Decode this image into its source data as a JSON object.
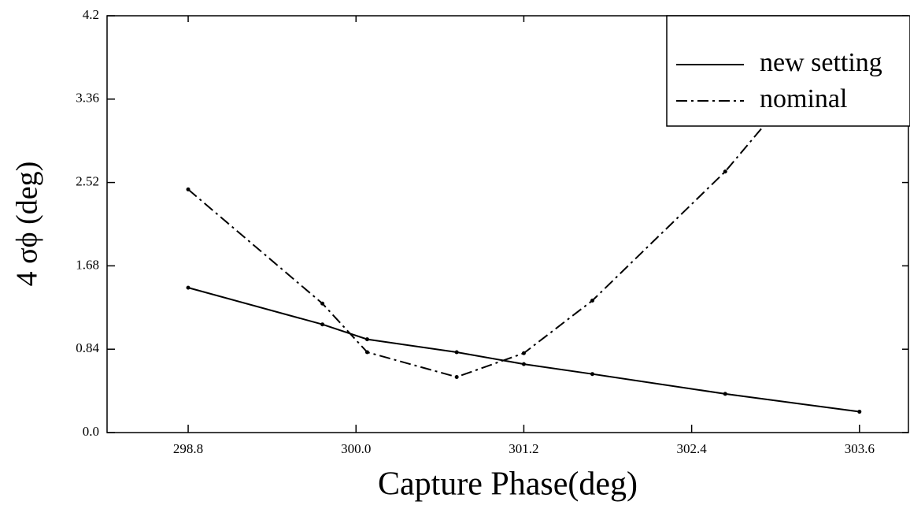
{
  "chart_data": {
    "type": "line",
    "xlabel": "Capture Phase(deg)",
    "ylabel": "4 σϕ (deg)",
    "xlim": [
      298.22,
      303.95
    ],
    "ylim": [
      0,
      4.2
    ],
    "xticks": [
      298.8,
      {
        "value": 300.0,
        "label": "300.0"
      },
      301.2,
      302.4,
      303.6
    ],
    "yticks": [
      {
        "value": 0,
        "label": "0.0"
      },
      0.84,
      1.68,
      2.52,
      3.36,
      4.2
    ],
    "legend": "upper right",
    "series": [
      {
        "name": "new setting",
        "color": "#000000",
        "linestyle": "solid",
        "x": [
          298.8,
          299.76,
          300.08,
          300.72,
          301.2,
          301.69,
          302.64,
          303.6
        ],
        "values": [
          1.46,
          1.09,
          0.94,
          0.81,
          0.69,
          0.59,
          0.39,
          0.21
        ]
      },
      {
        "name": "nominal",
        "color": "#000000",
        "linestyle": "dashdot",
        "x": [
          298.8,
          299.76,
          300.08,
          300.72,
          301.2,
          301.69,
          302.64,
          303.1
        ],
        "values": [
          2.45,
          1.3,
          0.81,
          0.56,
          0.8,
          1.33,
          2.63,
          3.4
        ]
      }
    ]
  }
}
